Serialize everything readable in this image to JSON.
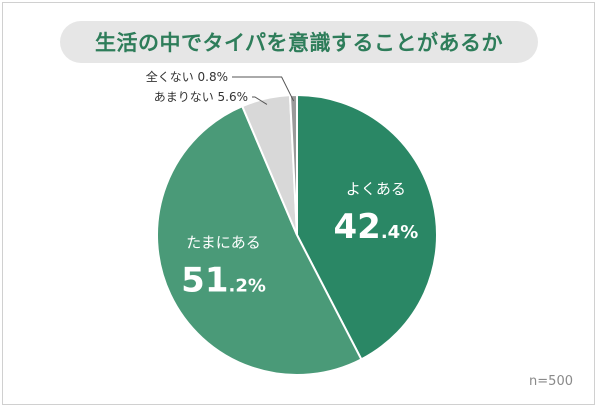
{
  "chart_data": {
    "type": "pie",
    "title": "生活の中でタイパを意識することがあるか",
    "start": "top",
    "direction": "clockwise",
    "slices": [
      {
        "label": "よくある",
        "value": 42.4,
        "value_text": "42",
        "decimal_text": ".4%",
        "color": "#2a8765",
        "label_placement": "inside"
      },
      {
        "label": "たまにある",
        "value": 51.2,
        "value_text": "51",
        "decimal_text": ".2%",
        "color": "#4a9a78",
        "label_placement": "inside"
      },
      {
        "label": "あまりない",
        "value": 5.6,
        "value_text": "5.6%",
        "color": "#d8d8d8",
        "label_placement": "outside"
      },
      {
        "label": "全くない",
        "value": 0.8,
        "value_text": "0.8%",
        "color": "#9a9a9a",
        "label_placement": "outside"
      }
    ],
    "note": "n=500"
  }
}
